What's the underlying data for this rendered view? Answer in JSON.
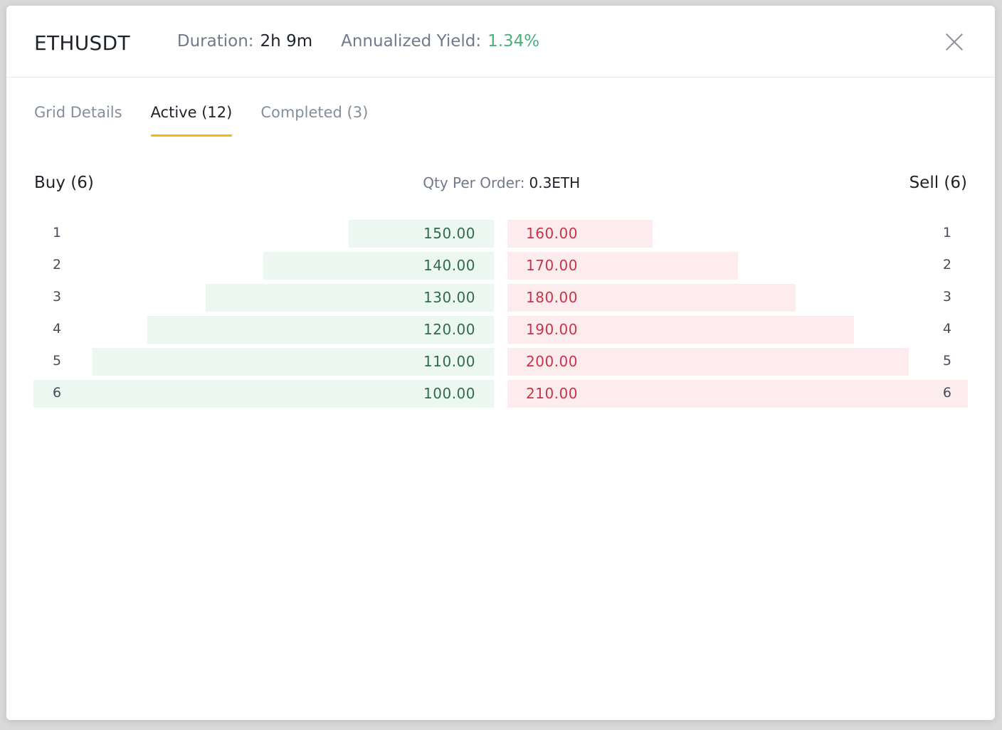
{
  "header": {
    "symbol": "ETHUSDT",
    "duration_label": "Duration:",
    "duration_value": "2h 9m",
    "yield_label": "Annualized Yield:",
    "yield_value": "1.34%",
    "close_icon": "close-icon"
  },
  "tabs": [
    {
      "label": "Grid Details",
      "active": false
    },
    {
      "label": "Active (12)",
      "active": true
    },
    {
      "label": "Completed (3)",
      "active": false
    }
  ],
  "book": {
    "buy_title": "Buy (6)",
    "sell_title": "Sell (6)",
    "qty_label": "Qty Per Order:",
    "qty_value": "0.3ETH",
    "rows": [
      {
        "index": "1",
        "buy_price": "150.00",
        "sell_price": "160.00",
        "buy_depth": 0.316,
        "sell_depth": 0.315
      },
      {
        "index": "2",
        "buy_price": "140.00",
        "sell_price": "170.00",
        "buy_depth": 0.501,
        "sell_depth": 0.5
      },
      {
        "index": "3",
        "buy_price": "130.00",
        "sell_price": "180.00",
        "buy_depth": 0.626,
        "sell_depth": 0.626
      },
      {
        "index": "4",
        "buy_price": "120.00",
        "sell_price": "190.00",
        "buy_depth": 0.753,
        "sell_depth": 0.752
      },
      {
        "index": "5",
        "buy_price": "110.00",
        "sell_price": "200.00",
        "buy_depth": 0.872,
        "sell_depth": 0.872
      },
      {
        "index": "6",
        "buy_price": "100.00",
        "sell_price": "210.00",
        "buy_depth": 1.0,
        "sell_depth": 1.0
      }
    ]
  },
  "colors": {
    "buy_bar": "#ecf7f2",
    "sell_bar": "#fdecee",
    "buy_text": "#2e6b52",
    "sell_text": "#c8344a",
    "yield": "#4caf7d",
    "tab_underline": "#f0b90b"
  }
}
